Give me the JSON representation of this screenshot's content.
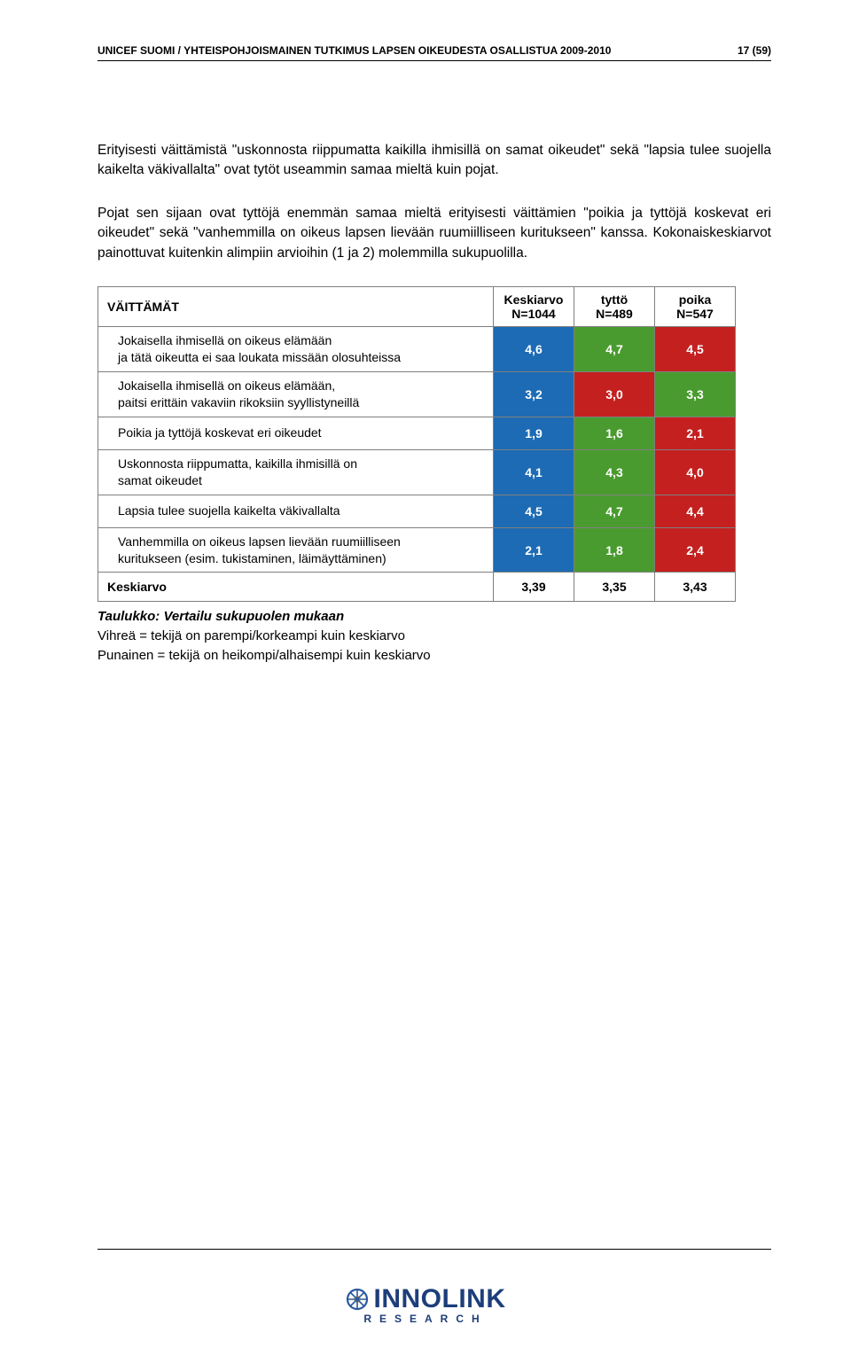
{
  "header": {
    "title": "UNICEF SUOMI / YHTEISPOHJOISMAINEN TUTKIMUS LAPSEN OIKEUDESTA OSALLISTUA 2009-2010",
    "page_num": "17 (59)"
  },
  "paragraphs": {
    "p1": "Erityisesti väittämistä \"uskonnosta riippumatta kaikilla ihmisillä on samat oikeudet\" sekä \"lapsia tulee suojella kaikelta väkivallalta\" ovat tytöt useammin samaa mieltä kuin pojat.",
    "p2": "Pojat sen sijaan ovat tyttöjä enemmän samaa mieltä erityisesti väittämien \"poikia ja tyttöjä koskevat eri oikeudet\" sekä \"vanhemmilla on oikeus lapsen lievään ruumiilliseen kuritukseen\" kanssa. Kokonaiskeskiarvot painottuvat kuitenkin alimpiin arvioihin (1 ja 2) molemmilla sukupuolilla."
  },
  "table": {
    "colors": {
      "blue": "#1d6bb4",
      "green": "#4a9b2f",
      "red": "#c42020"
    },
    "header": {
      "label": "VÄITTÄMÄT",
      "col1_a": "Keskiarvo",
      "col1_b": "N=1044",
      "col2_a": "tyttö",
      "col2_b": "N=489",
      "col3_a": "poika",
      "col3_b": "N=547"
    },
    "rows": [
      {
        "label_a": "Jokaisella ihmisellä on oikeus elämään",
        "label_b": "ja tätä oikeutta ei saa loukata missään olosuhteissa",
        "v1": "4,6",
        "c1": "blue",
        "v2": "4,7",
        "c2": "green",
        "v3": "4,5",
        "c3": "red"
      },
      {
        "label_a": "Jokaisella ihmisellä on oikeus elämään,",
        "label_b": "paitsi erittäin vakaviin rikoksiin syyllistyneillä",
        "v1": "3,2",
        "c1": "blue",
        "v2": "3,0",
        "c2": "red",
        "v3": "3,3",
        "c3": "green"
      },
      {
        "label_a": "Poikia ja tyttöjä koskevat eri oikeudet",
        "label_b": "",
        "v1": "1,9",
        "c1": "blue",
        "v2": "1,6",
        "c2": "green",
        "v3": "2,1",
        "c3": "red"
      },
      {
        "label_a": "Uskonnosta riippumatta, kaikilla ihmisillä on",
        "label_b": "samat oikeudet",
        "v1": "4,1",
        "c1": "blue",
        "v2": "4,3",
        "c2": "green",
        "v3": "4,0",
        "c3": "red"
      },
      {
        "label_a": "Lapsia tulee suojella kaikelta väkivallalta",
        "label_b": "",
        "v1": "4,5",
        "c1": "blue",
        "v2": "4,7",
        "c2": "green",
        "v3": "4,4",
        "c3": "red"
      },
      {
        "label_a": "Vanhemmilla on oikeus lapsen lievään ruumiilliseen",
        "label_b": "kuritukseen (esim. tukistaminen, läimäyttäminen)",
        "v1": "2,1",
        "c1": "blue",
        "v2": "1,8",
        "c2": "green",
        "v3": "2,4",
        "c3": "red"
      }
    ],
    "footer": {
      "label": "Keskiarvo",
      "v1": "3,39",
      "v2": "3,35",
      "v3": "3,43"
    }
  },
  "caption": {
    "title": "Taulukko: Vertailu sukupuolen mukaan",
    "line1": "Vihreä = tekijä on parempi/korkeampi kuin keskiarvo",
    "line2": "Punainen = tekijä on heikompi/alhaisempi kuin keskiarvo"
  },
  "logo": {
    "name": "INNOLINK",
    "sub": "RESEARCH"
  }
}
